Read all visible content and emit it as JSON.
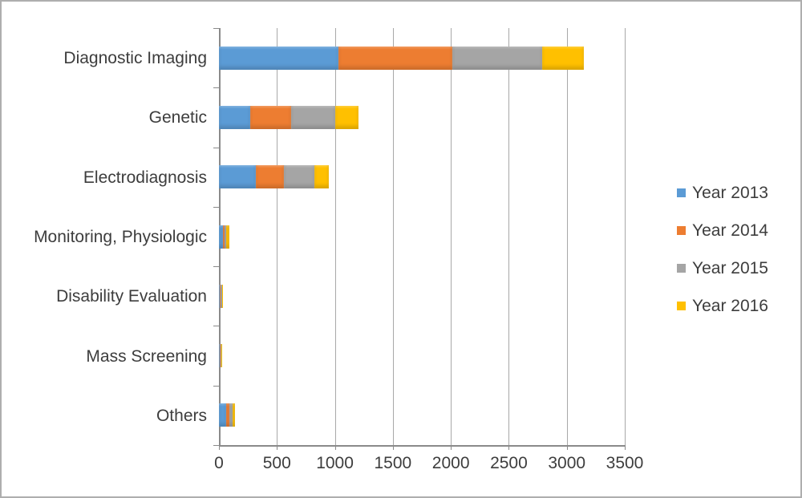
{
  "chart_data": {
    "type": "bar",
    "orientation": "horizontal",
    "stacked": true,
    "title": "",
    "xlabel": "",
    "ylabel": "",
    "grid": true,
    "legend_position": "right",
    "xlim": [
      0,
      3500
    ],
    "x_ticks": [
      0,
      500,
      1000,
      1500,
      2000,
      2500,
      3000,
      3500
    ],
    "categories": [
      "Diagnostic Imaging",
      "Genetic",
      "Electrodiagnosis",
      "Monitoring, Physiologic",
      "Disability Evaluation",
      "Mass Screening",
      "Others"
    ],
    "series": [
      {
        "name": "Year 2013",
        "color": "#5B9BD5",
        "values": [
          1030,
          270,
          320,
          35,
          5,
          4,
          60
        ]
      },
      {
        "name": "Year 2014",
        "color": "#ED7D31",
        "values": [
          980,
          355,
          240,
          15,
          12,
          10,
          30
        ]
      },
      {
        "name": "Year 2015",
        "color": "#A5A5A5",
        "values": [
          780,
          380,
          260,
          15,
          8,
          5,
          25
        ]
      },
      {
        "name": "Year 2016",
        "color": "#FFC000",
        "values": [
          360,
          200,
          130,
          25,
          5,
          4,
          20
        ]
      }
    ],
    "totals": [
      3150,
      1205,
      950,
      90,
      30,
      23,
      135
    ]
  },
  "colors": {
    "grid": "#a8a8a8",
    "axis": "#8a8a8a",
    "text": "#3d3d3d",
    "background": "#ffffff",
    "border": "#aeaeae"
  }
}
